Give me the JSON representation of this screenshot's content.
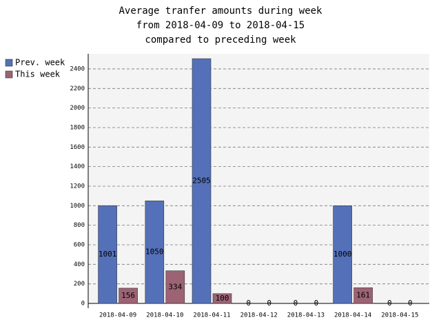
{
  "chart_data": {
    "type": "bar",
    "title": [
      "Average tranfer amounts during week",
      "from 2018-04-09 to 2018-04-15",
      "compared to preceding week"
    ],
    "categories": [
      "2018-04-09",
      "2018-04-10",
      "2018-04-11",
      "2018-04-12",
      "2018-04-13",
      "2018-04-14",
      "2018-04-15"
    ],
    "series": [
      {
        "name": "Prev. week",
        "color": "#5470b8",
        "values": [
          1001,
          1050,
          2505,
          0,
          0,
          1000,
          0
        ]
      },
      {
        "name": "This week",
        "color": "#9c6375",
        "values": [
          156,
          334,
          100,
          0,
          0,
          161,
          0
        ]
      }
    ],
    "ylim": [
      0,
      2555
    ],
    "yticks": [
      0,
      200,
      400,
      600,
      800,
      1000,
      1200,
      1400,
      1600,
      1800,
      2000,
      2200,
      2400
    ],
    "grid": true,
    "legend": "left"
  }
}
